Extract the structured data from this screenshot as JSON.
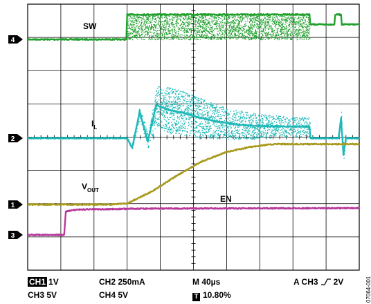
{
  "chart_data": {
    "type": "line",
    "title": "",
    "xlabel": "",
    "ylabel": "",
    "xlim": [
      0,
      400
    ],
    "x_unit": "µs",
    "grid": true,
    "grid_divisions": {
      "x": 10,
      "y": 8
    },
    "series": [
      {
        "name": "SW",
        "channel": "4",
        "color": "#22a02e",
        "label": "SW",
        "x": [
          0,
          119,
          120,
          340,
          341,
          370,
          371,
          378,
          379,
          400
        ],
        "y": [
          0,
          0,
          1,
          1,
          0.6,
          0.6,
          1,
          1,
          0.6,
          0.6
        ],
        "switching_region": [
          120,
          340
        ]
      },
      {
        "name": "IL",
        "channel": "2",
        "color": "#1fb8b8",
        "label_main": "I",
        "label_sub": "L",
        "x": [
          0,
          120,
          126,
          135,
          145,
          155,
          170,
          190,
          210,
          230,
          250,
          270,
          290,
          320,
          340,
          341,
          375,
          378,
          381,
          384,
          400
        ],
        "y": [
          0,
          0,
          -0.3,
          0.8,
          -0.1,
          1.0,
          0.85,
          0.75,
          0.6,
          0.5,
          0.42,
          0.38,
          0.36,
          0.35,
          0.35,
          0,
          0,
          0.6,
          -0.5,
          0,
          0
        ],
        "spread": [
          0,
          0,
          0.05,
          0.2,
          0.2,
          0.6,
          0.7,
          0.65,
          0.6,
          0.5,
          0.45,
          0.4,
          0.35,
          0.3,
          0.3,
          0,
          0,
          0.2,
          0.2,
          0,
          0
        ]
      },
      {
        "name": "VOUT",
        "channel": "1",
        "color": "#a89a1e",
        "label_main": "V",
        "label_sub": "OUT",
        "x": [
          0,
          100,
          120,
          150,
          180,
          210,
          240,
          270,
          290,
          300,
          310,
          400
        ],
        "y": [
          0,
          0,
          0.02,
          0.25,
          0.55,
          0.82,
          1.0,
          1.1,
          1.14,
          1.15,
          1.15,
          1.15
        ]
      },
      {
        "name": "EN",
        "channel": "3",
        "color": "#b8389c",
        "label": "EN",
        "x": [
          0,
          44,
          46,
          60,
          140,
          400
        ],
        "y": [
          0,
          0,
          1,
          1.08,
          1.12,
          1.14
        ]
      }
    ],
    "channel_markers": [
      "4",
      "2",
      "1",
      "3"
    ],
    "settings": {
      "ch1": {
        "tag": "CH1",
        "value": "1V"
      },
      "ch2": "CH2 250mA",
      "ch3": "CH3 5V",
      "ch4": "CH4 5V",
      "timebase": "M 40µs",
      "trigger_pos_tag": "T",
      "trigger_pos": "10.80%",
      "trigger_left": "A  CH3",
      "trigger_level": "2V"
    },
    "figure_id": "07064-001"
  }
}
